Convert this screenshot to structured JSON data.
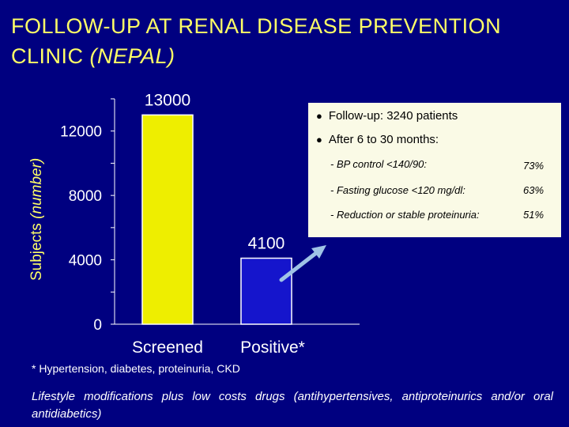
{
  "title": {
    "line1": "FOLLOW-UP  AT  RENAL  DISEASE  PREVENTION",
    "line2_main": "CLINIC ",
    "line2_em": "(NEPAL)"
  },
  "colors": {
    "background": "#000080",
    "title": "#ffff66",
    "screened_bar": "#eeee00",
    "positive_bar": "#1515cc",
    "box": "#fafae6"
  },
  "chart_data": {
    "type": "bar",
    "ylabel_main": "Subjects ",
    "ylabel_unit": "(number)",
    "categories": [
      "Screened",
      "Positive*"
    ],
    "values": [
      13000,
      4100
    ],
    "value_labels": [
      "13000",
      "4100"
    ],
    "ylim": [
      0,
      14000
    ],
    "ticks": [
      0,
      4000,
      8000,
      12000
    ],
    "tick_labels": [
      "0",
      "4000",
      "8000",
      "12000"
    ],
    "minor_ticks": [
      2000,
      6000,
      10000,
      14000
    ],
    "grid": false
  },
  "info": {
    "bullet1": "Follow-up: 3240 patients",
    "bullet2": "After 6 to 30 months:",
    "items": [
      {
        "label": "BP control <140/90:",
        "value": "73%"
      },
      {
        "label": "Fasting glucose <120 mg/dl:",
        "value": "63%"
      },
      {
        "label": "Reduction or stable proteinuria:",
        "value": "51%"
      }
    ]
  },
  "footnote": "* Hypertension, diabetes, proteinuria, CKD",
  "bottom_note": "Lifestyle modifications plus low costs drugs (antihypertensives, antiproteinurics and/or oral antidiabetics)"
}
